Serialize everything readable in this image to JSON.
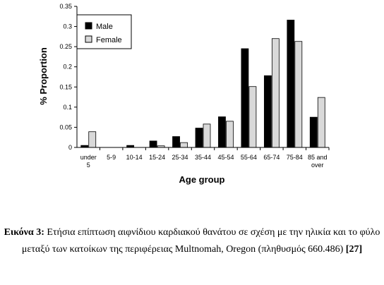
{
  "chart_data": {
    "type": "bar",
    "xlabel": "Age group",
    "ylabel": "% Proportion",
    "ylim": [
      0,
      0.35
    ],
    "yticks": [
      "0",
      "0.05",
      "0.1",
      "0.15",
      "0.2",
      "0.25",
      "0.3",
      "0.35"
    ],
    "categories": [
      [
        "under",
        "5"
      ],
      [
        "5-9"
      ],
      [
        "10-14"
      ],
      [
        "15-24"
      ],
      [
        "25-34"
      ],
      [
        "35-44"
      ],
      [
        "45-54"
      ],
      [
        "55-64"
      ],
      [
        "65-74"
      ],
      [
        "75-84"
      ],
      [
        "85 and",
        "over"
      ]
    ],
    "series": [
      {
        "name": "Male",
        "color": "#000000",
        "values": [
          0.005,
          0,
          0.005,
          0.016,
          0.027,
          0.048,
          0.076,
          0.245,
          0.178,
          0.316,
          0.075
        ]
      },
      {
        "name": "Female",
        "color": "#d9d9d9",
        "values": [
          0.039,
          0,
          0,
          0.004,
          0.012,
          0.058,
          0.065,
          0.151,
          0.27,
          0.263,
          0.124
        ]
      }
    ],
    "grid": false,
    "legend_position": "top-left"
  },
  "caption": {
    "lead": "Εικόνα 3:",
    "text": " Ετήσια επίπτωση αιφνίδιου καρδιακού θανάτου σε σχέση με την ηλικία και το φύλο μεταξύ των κατοίκων της περιφέρειας Multnomah, Oregon (πληθυσμός 660.486) ",
    "ref": "[27]"
  }
}
